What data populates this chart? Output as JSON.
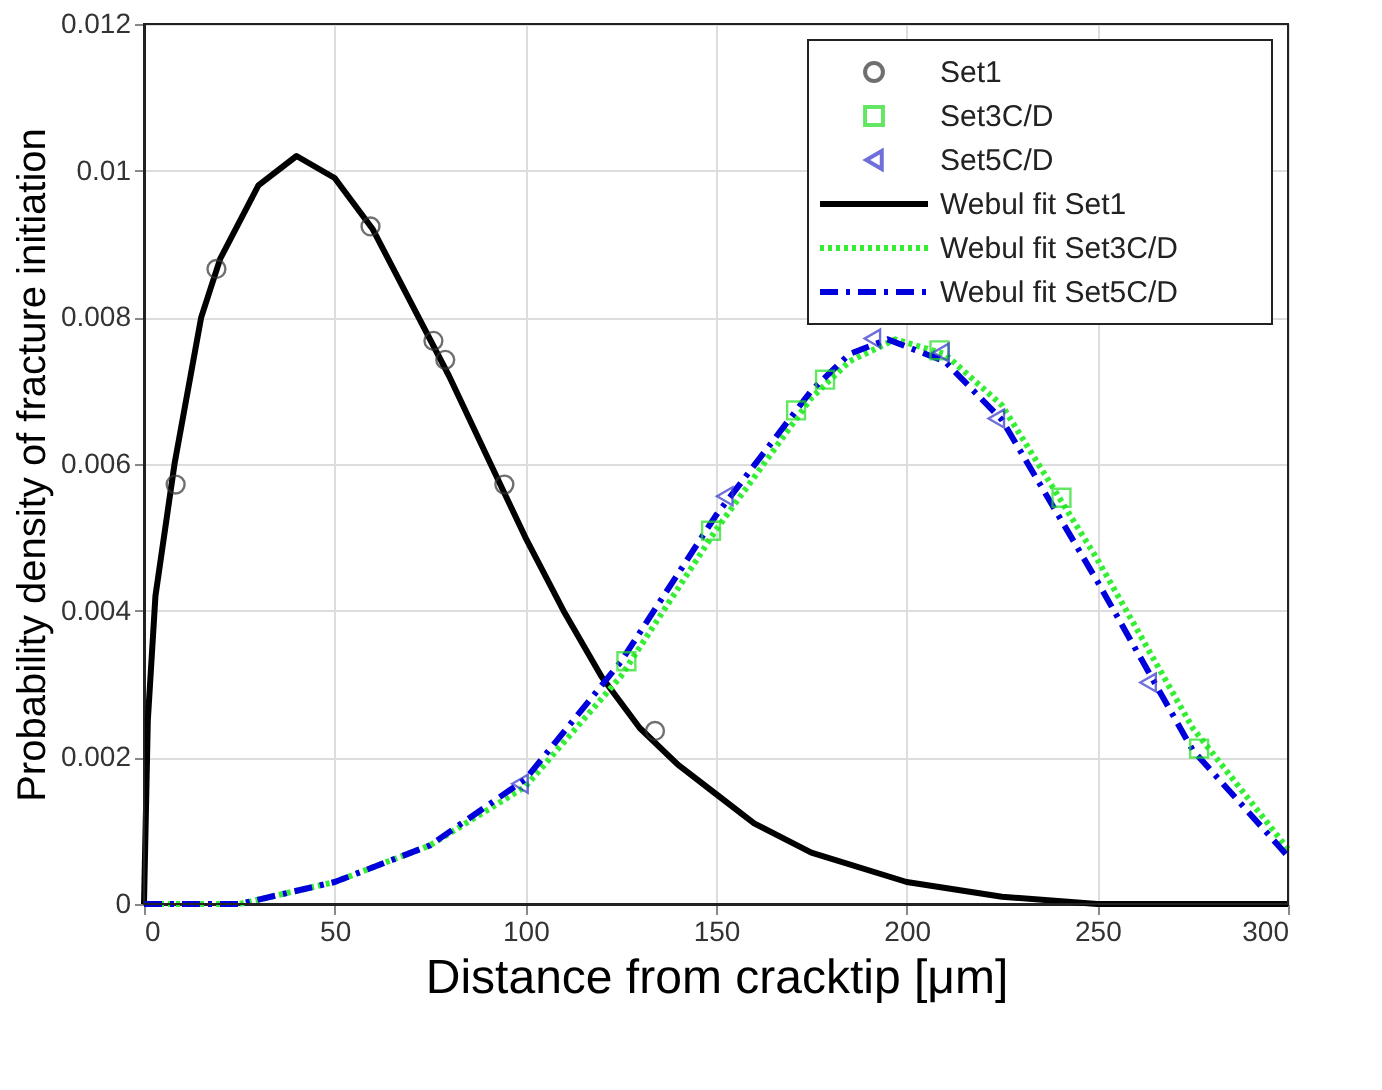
{
  "chart_data": {
    "type": "scatter",
    "xlabel": "Distance from cracktip [μm]",
    "ylabel": "Probability density of fracture initiation",
    "xlim": [
      0,
      300
    ],
    "xticks": [
      0,
      50,
      100,
      150,
      200,
      250,
      300
    ],
    "ylim": [
      0,
      0.012
    ],
    "yticks": [
      0,
      0.002,
      0.004,
      0.006,
      0.008,
      0.01,
      0.012
    ],
    "grid": true,
    "legend": "top right",
    "series": [
      {
        "name": "Set1",
        "marker": "circle",
        "color": "#333333",
        "x": [
          8.3,
          19,
          59.4,
          75.9,
          79,
          94.5,
          134
        ],
        "values": [
          0.00572,
          0.00866,
          0.00924,
          0.00768,
          0.00742,
          0.00572,
          0.00236
        ]
      },
      {
        "name": "Set3C/D",
        "marker": "square",
        "color": "#22dd22",
        "x": [
          126.5,
          148.7,
          171,
          178.6,
          208.6,
          240.6,
          276.7
        ],
        "values": [
          0.00331,
          0.00509,
          0.00673,
          0.00715,
          0.00755,
          0.00554,
          0.00212
        ]
      },
      {
        "name": "Set5C/D",
        "marker": "triangle",
        "color": "#3333cc",
        "x": [
          98.6,
          152.3,
          191,
          209,
          223.5,
          263.3
        ],
        "values": [
          0.00164,
          0.00556,
          0.00771,
          0.00752,
          0.00662,
          0.00302
        ]
      },
      {
        "name": "Webul fit Set1",
        "type": "line",
        "line_style": "solid",
        "color": "#000000",
        "x": [
          0,
          1,
          3,
          8,
          15,
          20,
          30,
          40,
          50,
          60,
          70,
          80,
          90,
          100,
          110,
          120,
          130,
          140,
          150,
          160,
          175,
          200,
          225,
          250,
          275,
          300
        ],
        "values": [
          0,
          0.0025,
          0.0042,
          0.006,
          0.008,
          0.0088,
          0.0098,
          0.0102,
          0.0099,
          0.0092,
          0.0082,
          0.0072,
          0.0061,
          0.005,
          0.004,
          0.0031,
          0.0024,
          0.0019,
          0.0015,
          0.0011,
          0.0007,
          0.0003,
          0.0001,
          0,
          0,
          0
        ]
      },
      {
        "name": "Webul fit Set3C/D",
        "type": "line",
        "line_style": "dotted",
        "color": "#33ee33",
        "x": [
          0,
          25,
          50,
          75,
          100,
          125,
          150,
          175,
          185,
          197,
          210,
          225,
          250,
          275,
          300
        ],
        "values": [
          0,
          0,
          0.0003,
          0.0008,
          0.0016,
          0.0031,
          0.0051,
          0.0069,
          0.0074,
          0.0077,
          0.0075,
          0.0068,
          0.0047,
          0.0024,
          0.00075
        ]
      },
      {
        "name": "Webul fit Set5C/D",
        "type": "line",
        "line_style": "dashed",
        "color": "#0000dd",
        "x": [
          0,
          25,
          50,
          75,
          100,
          125,
          150,
          175,
          185,
          195,
          210,
          225,
          250,
          275,
          300
        ],
        "values": [
          0,
          0,
          0.0003,
          0.0008,
          0.0017,
          0.0033,
          0.0053,
          0.007,
          0.0075,
          0.0077,
          0.0074,
          0.0066,
          0.0044,
          0.0021,
          0.00065
        ]
      }
    ]
  }
}
